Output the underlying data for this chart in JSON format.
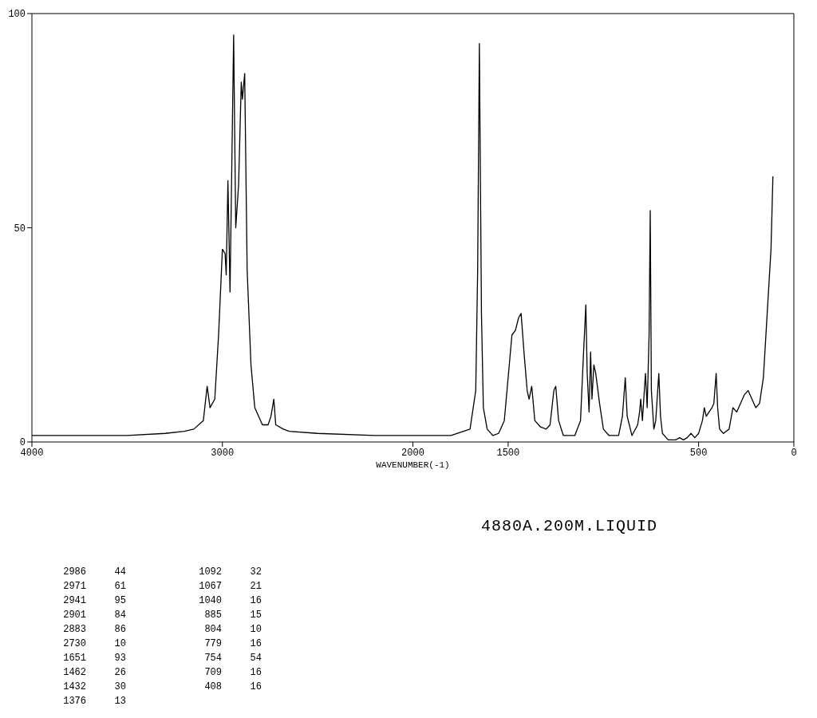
{
  "chart_data": {
    "type": "line",
    "xlabel": "WAVENUMBER(-1)",
    "xlim": [
      4000,
      0
    ],
    "xticks": [
      4000,
      3000,
      2000,
      1500,
      500,
      0
    ],
    "ylim": [
      0,
      100
    ],
    "yticks": [
      0,
      50,
      100
    ],
    "grid": false,
    "marker": "none",
    "line_style": "solid",
    "series": [
      {
        "color": "#000000",
        "x": [
          4000,
          3800,
          3500,
          3300,
          3200,
          3150,
          3100,
          3080,
          3065,
          3040,
          3020,
          3000,
          2986,
          2980,
          2971,
          2960,
          2941,
          2930,
          2915,
          2901,
          2895,
          2883,
          2870,
          2850,
          2830,
          2790,
          2760,
          2745,
          2730,
          2720,
          2680,
          2650,
          2500,
          2200,
          2000,
          1900,
          1800,
          1700,
          1670,
          1660,
          1651,
          1640,
          1630,
          1610,
          1580,
          1550,
          1520,
          1500,
          1480,
          1462,
          1445,
          1432,
          1415,
          1400,
          1390,
          1376,
          1360,
          1330,
          1300,
          1280,
          1260,
          1250,
          1235,
          1210,
          1150,
          1120,
          1105,
          1092,
          1085,
          1075,
          1067,
          1060,
          1050,
          1040,
          1020,
          1000,
          970,
          920,
          900,
          885,
          875,
          850,
          820,
          810,
          804,
          795,
          785,
          779,
          770,
          760,
          754,
          748,
          735,
          725,
          709,
          700,
          690,
          660,
          620,
          600,
          580,
          560,
          540,
          520,
          500,
          480,
          470,
          460,
          445,
          430,
          420,
          408,
          400,
          390,
          370,
          340,
          320,
          300,
          280,
          260,
          240,
          220,
          200,
          180,
          160,
          140,
          120,
          110
        ],
        "values": [
          1.5,
          1.5,
          1.5,
          2,
          2.5,
          3,
          5,
          13,
          8,
          10,
          25,
          45,
          44,
          39,
          61,
          35,
          95,
          50,
          60,
          84,
          80,
          86,
          40,
          18,
          8,
          4,
          4,
          6,
          10,
          4,
          3,
          2.5,
          2,
          1.5,
          1.5,
          1.5,
          1.5,
          3,
          12,
          40,
          93,
          30,
          8,
          3,
          1.5,
          2,
          5,
          15,
          25,
          26,
          29,
          30,
          20,
          12,
          10,
          13,
          5,
          3.5,
          3,
          4,
          12,
          13,
          5,
          1.5,
          1.5,
          5,
          20,
          32,
          16,
          7,
          21,
          10,
          18,
          16,
          9,
          3,
          1.5,
          1.5,
          6,
          15,
          6,
          1.5,
          4,
          7,
          10,
          5,
          12,
          16,
          8,
          25,
          54,
          12,
          3,
          5,
          16,
          6,
          2,
          0.5,
          0.5,
          1,
          0.5,
          1,
          2,
          1,
          2,
          5,
          8,
          6,
          7,
          8,
          9,
          16,
          8,
          3,
          2,
          3,
          8,
          7,
          9,
          11,
          12,
          10,
          8,
          9,
          15,
          30,
          45,
          62
        ]
      }
    ],
    "annotations": [
      "4880A.200M.LIQUID",
      "2986 44",
      "2971 61",
      "2941 95",
      "2901 84",
      "2883 86",
      "2730 10",
      "1651 93",
      "1462 26",
      "1432 30",
      "1376 13",
      "1092 32",
      "1067 21",
      "1040 16",
      "885 15",
      "804 10",
      "779 16",
      "754 54",
      "709 16",
      "408 16"
    ]
  }
}
